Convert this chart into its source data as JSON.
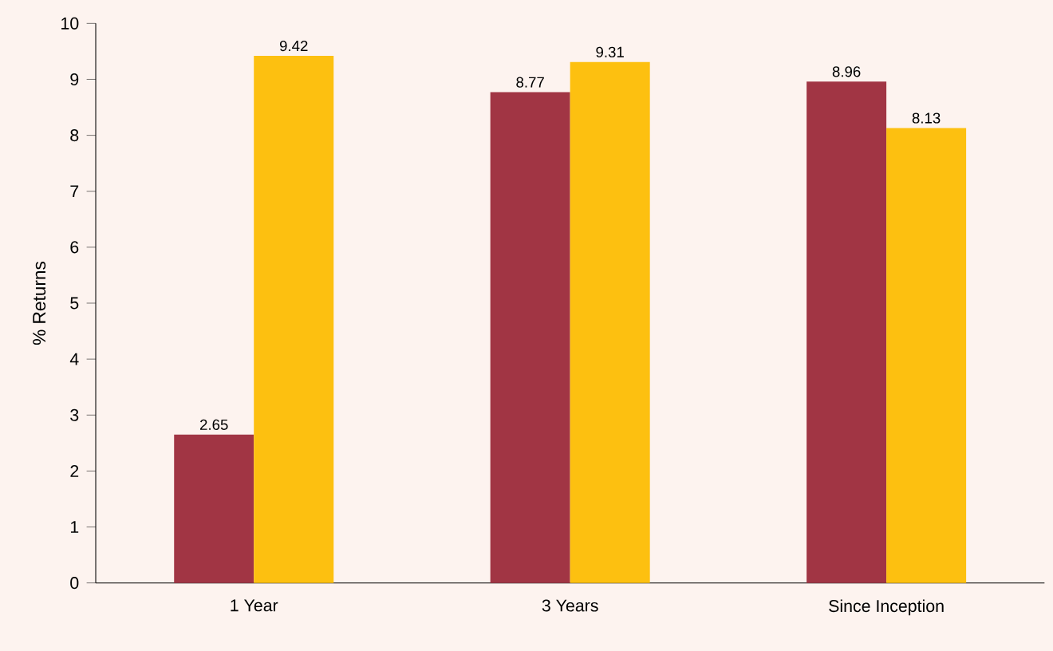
{
  "chart_data": {
    "type": "bar",
    "ylabel": "% Returns",
    "categories": [
      "1 Year",
      "3 Years",
      "Since Inception"
    ],
    "series": [
      {
        "color": "#a13544",
        "values": [
          2.65,
          8.77,
          8.96
        ]
      },
      {
        "color": "#fdc010",
        "values": [
          9.42,
          9.31,
          8.13
        ]
      }
    ],
    "ylim": [
      0,
      10
    ],
    "yticks": [
      0,
      1,
      2,
      3,
      4,
      5,
      6,
      7,
      8,
      9,
      10
    ],
    "data_labels": true
  }
}
